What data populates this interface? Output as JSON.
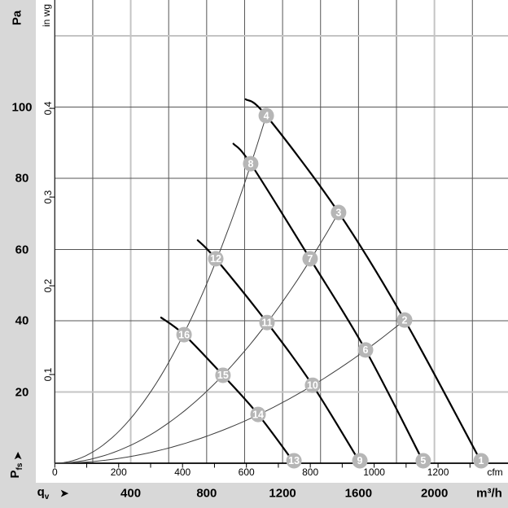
{
  "figure": {
    "margin_color": "#d8d8d8",
    "plot_color": "#ffffff",
    "marker_color": "#b6b6b6",
    "marker_text_color": "#ffffff",
    "grid_dark_color": "#555555",
    "grid_light_color": "#c4c4c4",
    "curve_color": "#000000"
  },
  "axes": {
    "pressure_pa": {
      "title": "Pa",
      "ticks": [
        100,
        80,
        60,
        40,
        20
      ]
    },
    "pressure_inwg": {
      "title": "in wg",
      "ticks": [
        0.4,
        0.3,
        0.2,
        0.1
      ]
    },
    "flow_cfm": {
      "ticks": [
        0,
        200,
        400,
        600,
        800,
        1000,
        1200
      ],
      "unit": "cfm",
      "minor_step": 100,
      "minor_max": 1300
    },
    "flow_m3h": {
      "ticks": [
        400,
        800,
        1200,
        1600,
        2000
      ],
      "unit": "m³/h"
    },
    "x_axis_label": {
      "symbol": "q",
      "subscript": "v",
      "arrow": "➤"
    },
    "y_axis_label": {
      "symbol": "P",
      "subscript": "fs",
      "arrow": "➤"
    }
  },
  "chart_data": {
    "type": "line",
    "title": "",
    "xlabel": "qv (airflow, m³/h and cfm)",
    "ylabel": "Pfs (static pressure, Pa and in wg)",
    "x_range_m3h": [
      0,
      2380
    ],
    "y_range_pa": [
      0,
      130
    ],
    "grid": {
      "v_lines_m3h": [
        200,
        400,
        600,
        800,
        1000,
        1200,
        1400,
        1600,
        1800,
        2000,
        2200
      ],
      "v_highlight_m3h": [
        400,
        2000
      ],
      "h_lines_pa": [
        20,
        40,
        60,
        80,
        100,
        120
      ],
      "h_highlight_pa": [
        20,
        120
      ]
    },
    "fan_curves": [
      {
        "name": "speed-curve-1",
        "points_q_p": [
          [
            1005,
            102.2
          ],
          [
            1114,
            97.6
          ],
          [
            1495,
            70.4
          ],
          [
            1843,
            40.2
          ],
          [
            2250,
            0
          ]
        ]
      },
      {
        "name": "speed-curve-2",
        "points_q_p": [
          [
            941,
            89.7
          ],
          [
            1032,
            84.1
          ],
          [
            1345,
            57.4
          ],
          [
            1637,
            31.8
          ],
          [
            1945,
            0
          ]
        ]
      },
      {
        "name": "speed-curve-3",
        "points_q_p": [
          [
            753,
            62.6
          ],
          [
            848,
            57.4
          ],
          [
            1118,
            39.5
          ],
          [
            1358,
            21.9
          ],
          [
            1610,
            0
          ]
        ]
      },
      {
        "name": "speed-curve-4",
        "points_q_p": [
          [
            560,
            40.9
          ],
          [
            681,
            36.1
          ],
          [
            886,
            24.7
          ],
          [
            1071,
            13.7
          ],
          [
            1263,
            0
          ]
        ]
      }
    ],
    "system_curves": [
      {
        "name": "system-curve-A",
        "k_pa_per_q2": 7.864e-05,
        "q_end": 1114
      },
      {
        "name": "system-curve-B",
        "k_pa_per_q2": 3.15e-05,
        "q_end": 1495
      },
      {
        "name": "system-curve-C",
        "k_pa_per_q2": 1.184e-05,
        "q_end": 1843
      }
    ],
    "operating_points": [
      {
        "label": "1",
        "q_m3h": 2246,
        "p_pa": 0.7
      },
      {
        "label": "2",
        "q_m3h": 1843,
        "p_pa": 40.2
      },
      {
        "label": "3",
        "q_m3h": 1495,
        "p_pa": 70.4
      },
      {
        "label": "4",
        "q_m3h": 1114,
        "p_pa": 97.6
      },
      {
        "label": "5",
        "q_m3h": 1941,
        "p_pa": 0.7
      },
      {
        "label": "6",
        "q_m3h": 1637,
        "p_pa": 31.8
      },
      {
        "label": "7",
        "q_m3h": 1345,
        "p_pa": 57.4
      },
      {
        "label": "8",
        "q_m3h": 1032,
        "p_pa": 84.1
      },
      {
        "label": "9",
        "q_m3h": 1607,
        "p_pa": 0.7
      },
      {
        "label": "10",
        "q_m3h": 1358,
        "p_pa": 21.9
      },
      {
        "label": "11",
        "q_m3h": 1118,
        "p_pa": 39.5
      },
      {
        "label": "12",
        "q_m3h": 848,
        "p_pa": 57.4
      },
      {
        "label": "13",
        "q_m3h": 1260,
        "p_pa": 0.7
      },
      {
        "label": "14",
        "q_m3h": 1071,
        "p_pa": 13.7
      },
      {
        "label": "15",
        "q_m3h": 886,
        "p_pa": 24.7
      },
      {
        "label": "16",
        "q_m3h": 681,
        "p_pa": 36.1
      }
    ]
  }
}
